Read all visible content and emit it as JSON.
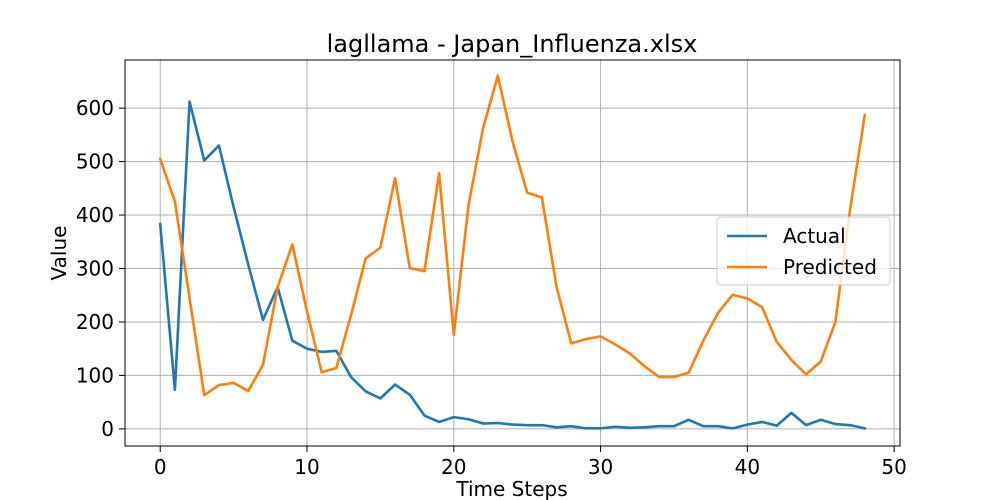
{
  "chart_data": {
    "type": "line",
    "title": "lagllama - Japan_Influenza.xlsx",
    "xlabel": "Time Steps",
    "ylabel": "Value",
    "xlim": [
      -2.4,
      50.4
    ],
    "ylim": [
      -32,
      690
    ],
    "xticks": [
      0,
      10,
      20,
      30,
      40,
      50
    ],
    "yticks": [
      0,
      100,
      200,
      300,
      400,
      500,
      600
    ],
    "grid": true,
    "legend_position": "center-right",
    "x": [
      0,
      1,
      2,
      3,
      4,
      5,
      6,
      7,
      8,
      9,
      10,
      11,
      12,
      13,
      14,
      15,
      16,
      17,
      18,
      19,
      20,
      21,
      22,
      23,
      24,
      25,
      26,
      27,
      28,
      29,
      30,
      31,
      32,
      33,
      34,
      35,
      36,
      37,
      38,
      39,
      40,
      41,
      42,
      43,
      44,
      45,
      46,
      47,
      48
    ],
    "series": [
      {
        "name": "Actual",
        "color": "#1f77b4",
        "values": [
          383,
          73,
          612,
          502,
          530,
          415,
          307,
          204,
          265,
          165,
          150,
          144,
          146,
          97,
          70,
          57,
          83,
          64,
          25,
          13,
          22,
          18,
          10,
          11,
          8,
          7,
          7,
          3,
          5,
          1,
          1,
          4,
          2,
          3,
          5,
          5,
          17,
          5,
          5,
          1,
          8,
          13,
          6,
          30,
          7,
          17,
          9,
          7,
          1
        ]
      },
      {
        "name": "Predicted",
        "color": "#ff7f0e",
        "values": [
          505,
          425,
          245,
          63,
          82,
          86,
          71,
          120,
          265,
          345,
          220,
          106,
          114,
          213,
          319,
          339,
          469,
          301,
          295,
          478,
          176,
          418,
          563,
          661,
          538,
          442,
          433,
          266,
          160,
          168,
          173,
          158,
          141,
          117,
          97,
          97,
          105,
          165,
          217,
          251,
          244,
          228,
          163,
          129,
          102,
          126,
          200,
          410,
          587
        ]
      }
    ]
  }
}
